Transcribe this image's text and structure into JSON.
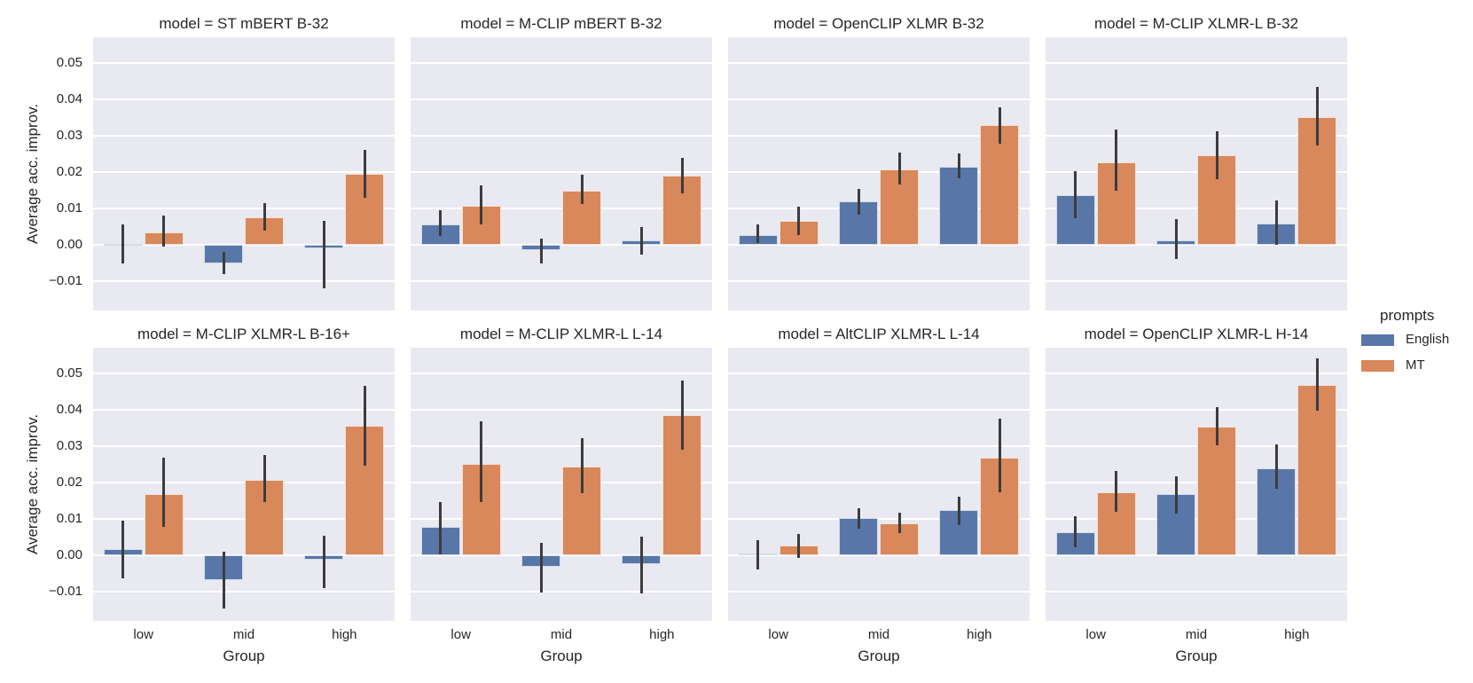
{
  "figure": {
    "background": "#ffffff",
    "plot_background": "#e9e9f2",
    "grid_color": "#ffffff",
    "text_color": "#262626",
    "errorbar_color": "#3c3c3c"
  },
  "legend": {
    "title": "prompts",
    "entries": [
      {
        "label": "English",
        "color": "#5877a8"
      },
      {
        "label": "MT",
        "color": "#d8885a"
      }
    ]
  },
  "chart_data": {
    "type": "bar",
    "facet_grid": {
      "rows": 2,
      "cols": 4,
      "facet_title_prefix": "model = "
    },
    "categories": [
      "low",
      "mid",
      "high"
    ],
    "xlabel": "Group",
    "ylabel": "Average acc. improv.",
    "ylim": [
      -0.018,
      0.057
    ],
    "grid": true,
    "legend_title": "prompts",
    "legend_position": "right",
    "series_names": [
      "English",
      "MT"
    ],
    "yticks": [
      {
        "value": -0.01,
        "label": "−0.01"
      },
      {
        "value": 0.0,
        "label": "0.00"
      },
      {
        "value": 0.01,
        "label": "0.01"
      },
      {
        "value": 0.02,
        "label": "0.02"
      },
      {
        "value": 0.03,
        "label": "0.03"
      },
      {
        "value": 0.04,
        "label": "0.04"
      },
      {
        "value": 0.05,
        "label": "0.05"
      }
    ],
    "facets": [
      {
        "title": "model = ST mBERT B-32",
        "series": [
          {
            "name": "English",
            "values": [
              0.0003,
              -0.005,
              -0.001
            ],
            "errors": [
              [
                -0.005,
                0.0055
              ],
              [
                -0.008,
                -0.002
              ],
              [
                -0.012,
                0.0065
              ]
            ]
          },
          {
            "name": "MT",
            "values": [
              0.0035,
              0.0075,
              0.0195
            ],
            "errors": [
              [
                -0.0005,
                0.008
              ],
              [
                0.004,
                0.0115
              ],
              [
                0.013,
                0.026
              ]
            ]
          }
        ]
      },
      {
        "title": "model = M-CLIP mBERT B-32",
        "series": [
          {
            "name": "English",
            "values": [
              0.0055,
              -0.0014,
              0.0012
            ],
            "errors": [
              [
                0.0025,
                0.0095
              ],
              [
                -0.005,
                0.0017
              ],
              [
                -0.0027,
                0.005
              ]
            ]
          },
          {
            "name": "MT",
            "values": [
              0.0107,
              0.0148,
              0.019
            ],
            "errors": [
              [
                0.0057,
                0.0163
              ],
              [
                0.0113,
                0.0193
              ],
              [
                0.0142,
                0.024
              ]
            ]
          }
        ]
      },
      {
        "title": "model = OpenCLIP XLMR B-32",
        "series": [
          {
            "name": "English",
            "values": [
              0.0028,
              0.012,
              0.0214
            ],
            "errors": [
              [
                0.0005,
                0.0055
              ],
              [
                0.0082,
                0.0154
              ],
              [
                0.0182,
                0.0252
              ]
            ]
          },
          {
            "name": "MT",
            "values": [
              0.0066,
              0.0208,
              0.0328
            ],
            "errors": [
              [
                0.0027,
                0.0105
              ],
              [
                0.0166,
                0.0254
              ],
              [
                0.0278,
                0.0378
              ]
            ]
          }
        ]
      },
      {
        "title": "model = M-CLIP XLMR-L B-32",
        "series": [
          {
            "name": "English",
            "values": [
              0.0136,
              0.0013,
              0.0059
            ],
            "errors": [
              [
                0.0073,
                0.0203
              ],
              [
                -0.0039,
                0.0072
              ],
              [
                0.0001,
                0.0122
              ]
            ]
          },
          {
            "name": "MT",
            "values": [
              0.0226,
              0.0246,
              0.0352
            ],
            "errors": [
              [
                0.0148,
                0.0316
              ],
              [
                0.0181,
                0.0312
              ],
              [
                0.0274,
                0.0434
              ]
            ]
          }
        ]
      },
      {
        "title": "model = M-CLIP XLMR-L B-16+",
        "series": [
          {
            "name": "English",
            "values": [
              0.0018,
              -0.0069,
              -0.0012
            ],
            "errors": [
              [
                -0.0063,
                0.0094
              ],
              [
                -0.0145,
                0.0009
              ],
              [
                -0.0091,
                0.0054
              ]
            ]
          },
          {
            "name": "MT",
            "values": [
              0.0168,
              0.0207,
              0.0355
            ],
            "errors": [
              [
                0.0077,
                0.0267
              ],
              [
                0.0146,
                0.0276
              ],
              [
                0.0246,
                0.0465
              ]
            ]
          }
        ]
      },
      {
        "title": "model = M-CLIP XLMR-L L-14",
        "series": [
          {
            "name": "English",
            "values": [
              0.0079,
              -0.0031,
              -0.0024
            ],
            "errors": [
              [
                0.0002,
                0.0146
              ],
              [
                -0.0103,
                0.0035
              ],
              [
                -0.0104,
                0.0052
              ]
            ]
          },
          {
            "name": "MT",
            "values": [
              0.025,
              0.0244,
              0.0386
            ],
            "errors": [
              [
                0.0146,
                0.0368
              ],
              [
                0.0171,
                0.0322
              ],
              [
                0.0291,
                0.048
              ]
            ]
          }
        ]
      },
      {
        "title": "model = AltCLIP XLMR-L L-14",
        "series": [
          {
            "name": "English",
            "values": [
              0.0006,
              0.0102,
              0.0124
            ],
            "errors": [
              [
                -0.0038,
                0.0041
              ],
              [
                0.0073,
                0.0129
              ],
              [
                0.0083,
                0.016
              ]
            ]
          },
          {
            "name": "MT",
            "values": [
              0.0027,
              0.0088,
              0.0268
            ],
            "errors": [
              [
                -0.0006,
                0.0058
              ],
              [
                0.006,
                0.0117
              ],
              [
                0.0173,
                0.0375
              ]
            ]
          }
        ]
      },
      {
        "title": "model = OpenCLIP XLMR-L H-14",
        "series": [
          {
            "name": "English",
            "values": [
              0.0063,
              0.0167,
              0.024
            ],
            "errors": [
              [
                0.0022,
                0.0108
              ],
              [
                0.0114,
                0.0218
              ],
              [
                0.0182,
                0.0305
              ]
            ]
          },
          {
            "name": "MT",
            "values": [
              0.0172,
              0.0353,
              0.0467
            ],
            "errors": [
              [
                0.0119,
                0.0231
              ],
              [
                0.0303,
                0.0408
              ],
              [
                0.0396,
                0.054
              ]
            ]
          }
        ]
      }
    ]
  }
}
